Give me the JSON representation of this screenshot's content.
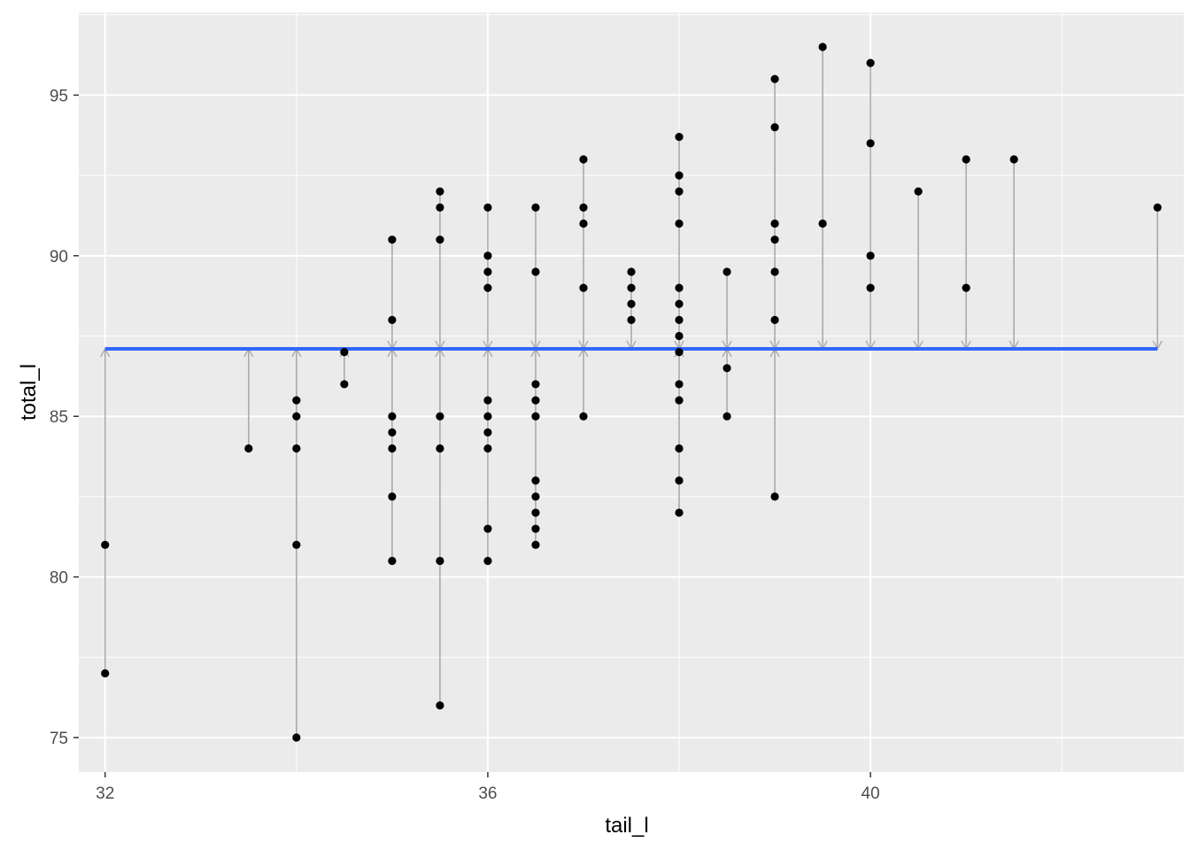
{
  "chart_data": {
    "type": "scatter",
    "title": "",
    "xlabel": "tail_l",
    "ylabel": "total_l",
    "xlim": [
      31.725,
      43.275
    ],
    "ylim": [
      73.925,
      97.575
    ],
    "x_ticks": [
      32,
      36,
      40
    ],
    "y_ticks": [
      75,
      80,
      85,
      90,
      95
    ],
    "grid": true,
    "background": "#ebebeb",
    "point_color": "#000000",
    "segment_color": "#a6a6a6",
    "mean_line": {
      "y": 87.1,
      "x_range": [
        32,
        43
      ],
      "color": "#3366ff"
    },
    "points": [
      {
        "x": 32,
        "y": 81
      },
      {
        "x": 32,
        "y": 77
      },
      {
        "x": 33.5,
        "y": 84
      },
      {
        "x": 34,
        "y": 85.5
      },
      {
        "x": 34,
        "y": 85
      },
      {
        "x": 34,
        "y": 84
      },
      {
        "x": 34,
        "y": 81
      },
      {
        "x": 34,
        "y": 75
      },
      {
        "x": 34.5,
        "y": 87
      },
      {
        "x": 34.5,
        "y": 86
      },
      {
        "x": 35,
        "y": 90.5
      },
      {
        "x": 35,
        "y": 88
      },
      {
        "x": 35,
        "y": 85
      },
      {
        "x": 35,
        "y": 84.5
      },
      {
        "x": 35,
        "y": 84
      },
      {
        "x": 35,
        "y": 82.5
      },
      {
        "x": 35,
        "y": 80.5
      },
      {
        "x": 35.5,
        "y": 92
      },
      {
        "x": 35.5,
        "y": 91.5
      },
      {
        "x": 35.5,
        "y": 90.5
      },
      {
        "x": 35.5,
        "y": 85
      },
      {
        "x": 35.5,
        "y": 84
      },
      {
        "x": 35.5,
        "y": 80.5
      },
      {
        "x": 35.5,
        "y": 76
      },
      {
        "x": 36,
        "y": 91.5
      },
      {
        "x": 36,
        "y": 90
      },
      {
        "x": 36,
        "y": 89.5
      },
      {
        "x": 36,
        "y": 89
      },
      {
        "x": 36,
        "y": 85.5
      },
      {
        "x": 36,
        "y": 85
      },
      {
        "x": 36,
        "y": 84.5
      },
      {
        "x": 36,
        "y": 84
      },
      {
        "x": 36,
        "y": 81.5
      },
      {
        "x": 36,
        "y": 80.5
      },
      {
        "x": 36.5,
        "y": 91.5
      },
      {
        "x": 36.5,
        "y": 89.5
      },
      {
        "x": 36.5,
        "y": 86
      },
      {
        "x": 36.5,
        "y": 85.5
      },
      {
        "x": 36.5,
        "y": 85
      },
      {
        "x": 36.5,
        "y": 83
      },
      {
        "x": 36.5,
        "y": 82.5
      },
      {
        "x": 36.5,
        "y": 82
      },
      {
        "x": 36.5,
        "y": 81.5
      },
      {
        "x": 36.5,
        "y": 81
      },
      {
        "x": 37,
        "y": 93
      },
      {
        "x": 37,
        "y": 91.5
      },
      {
        "x": 37,
        "y": 91
      },
      {
        "x": 37,
        "y": 89
      },
      {
        "x": 37,
        "y": 85
      },
      {
        "x": 37.5,
        "y": 89.5
      },
      {
        "x": 37.5,
        "y": 89
      },
      {
        "x": 37.5,
        "y": 88.5
      },
      {
        "x": 37.5,
        "y": 88
      },
      {
        "x": 38,
        "y": 93.7
      },
      {
        "x": 38,
        "y": 92.5
      },
      {
        "x": 38,
        "y": 92
      },
      {
        "x": 38,
        "y": 91
      },
      {
        "x": 38,
        "y": 89
      },
      {
        "x": 38,
        "y": 88.5
      },
      {
        "x": 38,
        "y": 88
      },
      {
        "x": 38,
        "y": 87.5
      },
      {
        "x": 38,
        "y": 87
      },
      {
        "x": 38,
        "y": 86
      },
      {
        "x": 38,
        "y": 85.5
      },
      {
        "x": 38,
        "y": 84
      },
      {
        "x": 38,
        "y": 83
      },
      {
        "x": 38,
        "y": 82
      },
      {
        "x": 38.5,
        "y": 89.5
      },
      {
        "x": 38.5,
        "y": 86.5
      },
      {
        "x": 38.5,
        "y": 85
      },
      {
        "x": 39,
        "y": 95.5
      },
      {
        "x": 39,
        "y": 94
      },
      {
        "x": 39,
        "y": 91
      },
      {
        "x": 39,
        "y": 90.5
      },
      {
        "x": 39,
        "y": 89.5
      },
      {
        "x": 39,
        "y": 88
      },
      {
        "x": 39,
        "y": 82.5
      },
      {
        "x": 39.5,
        "y": 96.5
      },
      {
        "x": 39.5,
        "y": 91
      },
      {
        "x": 40,
        "y": 96
      },
      {
        "x": 40,
        "y": 93.5
      },
      {
        "x": 40,
        "y": 90
      },
      {
        "x": 40,
        "y": 89
      },
      {
        "x": 40.5,
        "y": 92
      },
      {
        "x": 41,
        "y": 93
      },
      {
        "x": 41,
        "y": 89
      },
      {
        "x": 41.5,
        "y": 93
      },
      {
        "x": 43,
        "y": 91.5
      }
    ]
  }
}
